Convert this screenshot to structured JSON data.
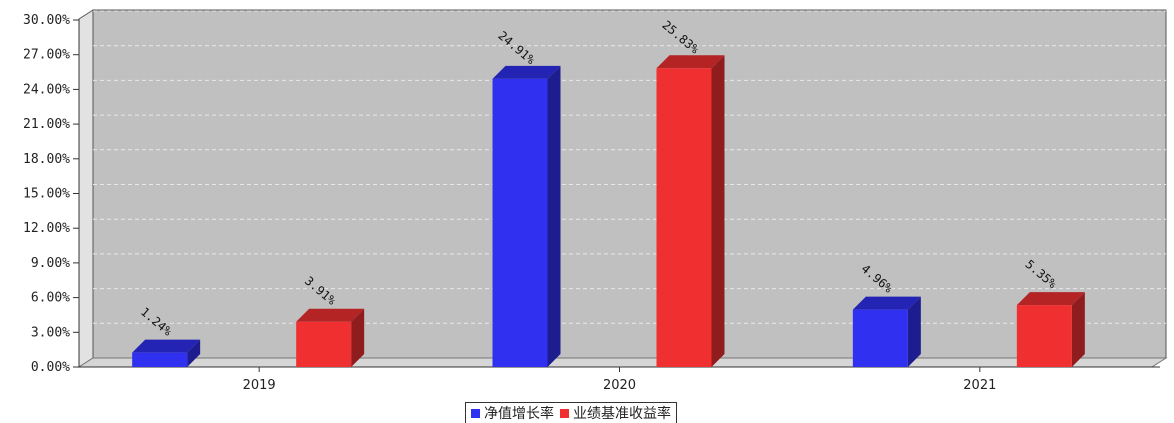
{
  "chart_data": {
    "type": "bar",
    "categories": [
      "2019",
      "2020",
      "2021"
    ],
    "series": [
      {
        "name": "净值增长率",
        "values": [
          1.24,
          24.91,
          4.96
        ],
        "labels": [
          "1.24%",
          "24.91%",
          "4.96%"
        ],
        "color": "#3030f0"
      },
      {
        "name": "业绩基准收益率",
        "values": [
          3.91,
          25.83,
          5.35
        ],
        "labels": [
          "3.91%",
          "25.83%",
          "5.35%"
        ],
        "color": "#f03030"
      }
    ],
    "ylim": [
      0,
      30
    ],
    "yticks": [
      "0.00%",
      "3.00%",
      "6.00%",
      "9.00%",
      "12.00%",
      "15.00%",
      "18.00%",
      "21.00%",
      "24.00%",
      "27.00%",
      "30.00%"
    ],
    "grid": true,
    "legend_position": "bottom-center",
    "plot_background": "#c0c0c0"
  }
}
